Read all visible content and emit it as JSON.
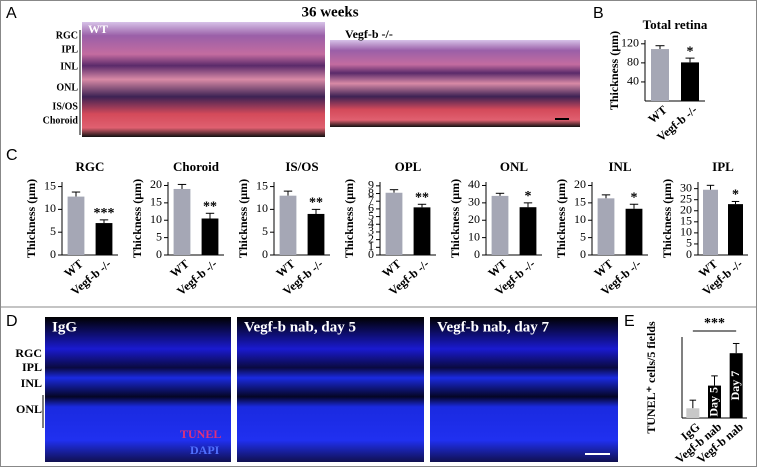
{
  "panels": {
    "a": {
      "letter": "A",
      "title": "36 weeks",
      "left": "WT",
      "right": "Vegf-b -/-",
      "layers": [
        "RGC",
        "IPL",
        "INL",
        "ONL",
        "IS/OS",
        "Choroid"
      ]
    },
    "b": {
      "letter": "B"
    },
    "c": {
      "letter": "C"
    },
    "d": {
      "letter": "D",
      "images": [
        "IgG",
        "Vegf-b nab, day 5",
        "Vegf-b nab, day 7"
      ],
      "layers": [
        "RGC",
        "IPL",
        "INL",
        "ONL"
      ],
      "stain1": "TUNEL",
      "stain2": "DAPI"
    },
    "e": {
      "letter": "E"
    }
  },
  "chart_data": [
    {
      "type": "bar",
      "title": "Total retina",
      "ylabel": "Thickness (µm)",
      "categories": [
        "WT",
        "Vegf-b -/-"
      ],
      "values": [
        109,
        81
      ],
      "errors": [
        7,
        9
      ],
      "colors": [
        "#a5a7b5",
        "#000000"
      ],
      "ylim": [
        0,
        128
      ],
      "yticks": [
        40,
        80,
        120
      ],
      "value_annotations": [
        null,
        "*"
      ]
    },
    {
      "type": "bar",
      "title": "RGC",
      "ylabel": "Thickness (µm)",
      "categories": [
        "WT",
        "Vegf-b -/-"
      ],
      "values": [
        12.8,
        7
      ],
      "errors": [
        1,
        0.7
      ],
      "colors": [
        "#a5a7b5",
        "#000000"
      ],
      "ylim": [
        0,
        16
      ],
      "yticks": [
        0,
        5,
        10,
        15
      ],
      "value_annotations": [
        null,
        "***"
      ]
    },
    {
      "type": "bar",
      "title": "Choroid",
      "ylabel": "Thickness (µm)",
      "categories": [
        "WT",
        "Vegf-b -/-"
      ],
      "values": [
        19,
        10.5
      ],
      "errors": [
        1.3,
        1.5
      ],
      "colors": [
        "#a5a7b5",
        "#000000"
      ],
      "ylim": [
        0,
        21
      ],
      "yticks": [
        0,
        5,
        10,
        15,
        20
      ],
      "value_annotations": [
        null,
        "**"
      ]
    },
    {
      "type": "bar",
      "title": "IS/OS",
      "ylabel": "Thickness (µm)",
      "categories": [
        "WT",
        "Vegf-b -/-"
      ],
      "values": [
        13,
        9
      ],
      "errors": [
        1,
        1
      ],
      "colors": [
        "#a5a7b5",
        "#000000"
      ],
      "ylim": [
        0,
        16
      ],
      "yticks": [
        0,
        5,
        10,
        15
      ],
      "value_annotations": [
        null,
        "**"
      ]
    },
    {
      "type": "bar",
      "title": "OPL",
      "ylabel": "Thickness (µm)",
      "categories": [
        "WT",
        "Vegf-b -/-"
      ],
      "values": [
        8.1,
        6.2
      ],
      "errors": [
        0.4,
        0.4
      ],
      "colors": [
        "#a5a7b5",
        "#000000"
      ],
      "ylim": [
        0,
        9.5
      ],
      "yticks": [
        0,
        1,
        2,
        3,
        4,
        5,
        6,
        7,
        8,
        9
      ],
      "value_annotations": [
        null,
        "**"
      ]
    },
    {
      "type": "bar",
      "title": "ONL",
      "ylabel": "Thickness (µm)",
      "categories": [
        "WT",
        "Vegf-b -/-"
      ],
      "values": [
        34,
        27.5
      ],
      "errors": [
        1.5,
        2.5
      ],
      "colors": [
        "#a5a7b5",
        "#000000"
      ],
      "ylim": [
        0,
        42
      ],
      "yticks": [
        0,
        10,
        20,
        30,
        40
      ],
      "value_annotations": [
        null,
        "*"
      ]
    },
    {
      "type": "bar",
      "title": "INL",
      "ylabel": "Thickness (µm)",
      "categories": [
        "WT",
        "Vegf-b -/-"
      ],
      "values": [
        16.3,
        13.3
      ],
      "errors": [
        1,
        1.3
      ],
      "colors": [
        "#a5a7b5",
        "#000000"
      ],
      "ylim": [
        0,
        21
      ],
      "yticks": [
        0,
        5,
        10,
        15,
        20
      ],
      "value_annotations": [
        null,
        "*"
      ]
    },
    {
      "type": "bar",
      "title": "IPL",
      "ylabel": "Thickness (µm)",
      "categories": [
        "WT",
        "Vegf-b -/-"
      ],
      "values": [
        29.5,
        23
      ],
      "errors": [
        2,
        1.2
      ],
      "colors": [
        "#a5a7b5",
        "#000000"
      ],
      "ylim": [
        0,
        33
      ],
      "yticks": [
        0,
        5,
        10,
        15,
        20,
        25,
        30
      ],
      "value_annotations": [
        null,
        "*"
      ]
    },
    {
      "type": "bar",
      "ylabel": "TUNEL⁺ cells/5 fields",
      "categories": [
        "IgG",
        "Vegf-b nab",
        "Vegf-b nab"
      ],
      "values": [
        6,
        20,
        40
      ],
      "errors": [
        5,
        6,
        6
      ],
      "colors": [
        "#c8c8c8",
        "#000000",
        "#000000"
      ],
      "ylim": [
        0,
        50
      ],
      "bar_labels": [
        null,
        "Day 5",
        "Day 7"
      ],
      "bracket_label": "***"
    }
  ]
}
